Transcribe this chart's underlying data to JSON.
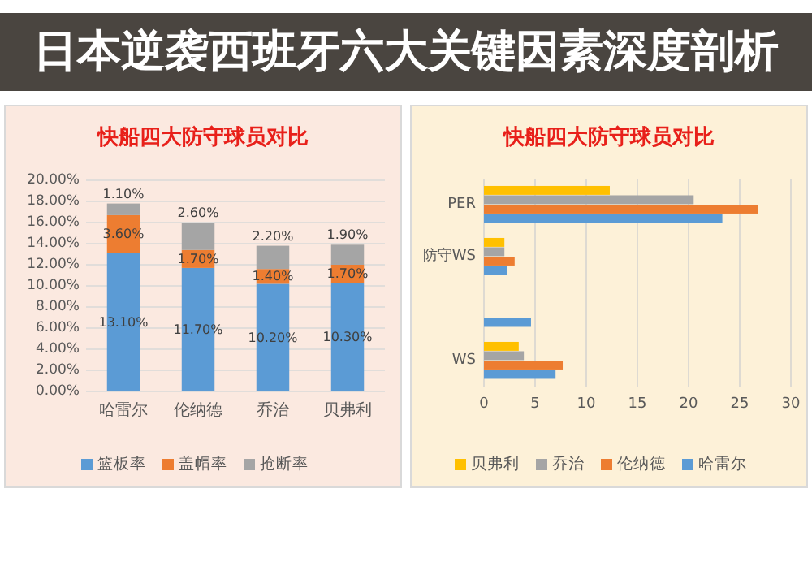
{
  "chart_data": [
    {
      "type": "other",
      "title": "日本逆袭西班牙六大关键因素深度剖析"
    },
    {
      "type": "bar",
      "title": "快船四大防守球员对比",
      "stacked": true,
      "categories": [
        "哈雷尔",
        "伦纳德",
        "乔治",
        "贝弗利"
      ],
      "series": [
        {
          "name": "篮板率",
          "color": "#5b9bd5",
          "values": [
            13.1,
            11.7,
            10.2,
            10.3
          ],
          "value_labels": [
            "13.10%",
            "11.70%",
            "10.20%",
            "10.30%"
          ]
        },
        {
          "name": "盖帽率",
          "color": "#ed7d31",
          "values": [
            3.6,
            1.7,
            1.4,
            1.7
          ],
          "value_labels": [
            "3.60%",
            "1.70%",
            "1.40%",
            "1.70%"
          ]
        },
        {
          "name": "抢断率",
          "color": "#a5a5a5",
          "values": [
            1.1,
            2.6,
            2.2,
            1.9
          ],
          "value_labels": [
            "1.10%",
            "2.60%",
            "2.20%",
            "1.90%"
          ]
        }
      ],
      "ylim": [
        0,
        20
      ],
      "yticks": [
        {
          "value": 0,
          "label": "0.00%"
        },
        {
          "value": 2,
          "label": "2.00%"
        },
        {
          "value": 4,
          "label": "4.00%"
        },
        {
          "value": 6,
          "label": "6.00%"
        },
        {
          "value": 8,
          "label": "8.00%"
        },
        {
          "value": 10,
          "label": "10.00%"
        },
        {
          "value": 12,
          "label": "12.00%"
        },
        {
          "value": 14,
          "label": "14.00%"
        },
        {
          "value": 16,
          "label": "16.00%"
        },
        {
          "value": 18,
          "label": "18.00%"
        },
        {
          "value": 20,
          "label": "20.00%"
        }
      ],
      "grid": "y",
      "legend": "bottom"
    },
    {
      "type": "bar",
      "title": "快船四大防守球员对比",
      "orientation": "horizontal",
      "categories": [
        "PER",
        "防守WS",
        null,
        "WS"
      ],
      "series": [
        {
          "name": "贝弗利",
          "color": "#ffc000",
          "values": [
            12.3,
            2.0,
            null,
            3.4
          ]
        },
        {
          "name": "乔治",
          "color": "#a5a5a5",
          "values": [
            20.5,
            2.0,
            null,
            3.9
          ]
        },
        {
          "name": "伦纳德",
          "color": "#ed7d31",
          "values": [
            26.8,
            3.0,
            null,
            7.7
          ]
        },
        {
          "name": "哈雷尔",
          "color": "#5b9bd5",
          "values": [
            23.3,
            2.3,
            4.6,
            7.0
          ]
        }
      ],
      "xlim": [
        0,
        30
      ],
      "xticks": [
        0,
        5,
        10,
        15,
        20,
        25,
        30
      ],
      "grid": "x",
      "legend": "bottom"
    }
  ]
}
